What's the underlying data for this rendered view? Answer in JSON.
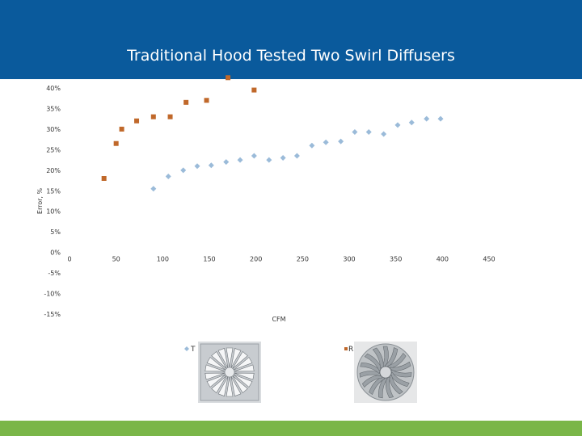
{
  "slide": {
    "title": "Traditional Hood Tested Two Swirl Diffusers"
  },
  "colors": {
    "header": "#0a5a9c",
    "footer": "#7ab648",
    "series_a": "#9bbbd9",
    "series_b": "#c0682a"
  },
  "chart_data": {
    "type": "scatter",
    "title": "",
    "xlabel": "CFM",
    "ylabel": "Error, %",
    "xlim": [
      0,
      450
    ],
    "ylim": [
      -15,
      40
    ],
    "x_ticks": [
      0,
      50,
      100,
      150,
      200,
      250,
      300,
      350,
      400,
      450
    ],
    "y_ticks": [
      {
        "value": 40,
        "label": "40%"
      },
      {
        "value": 35,
        "label": "35%"
      },
      {
        "value": 30,
        "label": "30%"
      },
      {
        "value": 25,
        "label": "25%"
      },
      {
        "value": 20,
        "label": "20%"
      },
      {
        "value": 15,
        "label": "15%"
      },
      {
        "value": 10,
        "label": "10%"
      },
      {
        "value": 5,
        "label": "5%"
      },
      {
        "value": 0,
        "label": "0%"
      },
      {
        "value": -5,
        "label": "-5%"
      },
      {
        "value": -10,
        "label": "-10%"
      },
      {
        "value": -15,
        "label": "-15%"
      }
    ],
    "grid": false,
    "legend": "bottom",
    "series": [
      {
        "name": "T",
        "marker": "diamond",
        "color": "#9bbbd9",
        "points": [
          [
            90,
            15.5
          ],
          [
            106,
            18.5
          ],
          [
            122,
            20
          ],
          [
            137,
            21
          ],
          [
            152,
            21.2
          ],
          [
            168,
            22
          ],
          [
            183,
            22.5
          ],
          [
            198,
            23.5
          ],
          [
            214,
            22.5
          ],
          [
            229,
            23
          ],
          [
            244,
            23.5
          ],
          [
            260,
            26
          ],
          [
            275,
            26.8
          ],
          [
            291,
            27
          ],
          [
            306,
            29.3
          ],
          [
            321,
            29.3
          ],
          [
            337,
            28.8
          ],
          [
            352,
            31
          ],
          [
            367,
            31.6
          ],
          [
            383,
            32.5
          ],
          [
            398,
            32.5
          ]
        ]
      },
      {
        "name": "R",
        "marker": "square",
        "color": "#c0682a",
        "points": [
          [
            37,
            18
          ],
          [
            50,
            26.5
          ],
          [
            56,
            30
          ],
          [
            72,
            32
          ],
          [
            90,
            33
          ],
          [
            108,
            33
          ],
          [
            125,
            36.5
          ],
          [
            147,
            37
          ],
          [
            170,
            42.5
          ],
          [
            198,
            39.5
          ]
        ]
      }
    ]
  },
  "legend": {
    "t_label": "T",
    "r_label": "R"
  },
  "photos": {
    "t_alt": "swirl-diffuser-square-photo",
    "r_alt": "swirl-diffuser-round-photo"
  }
}
